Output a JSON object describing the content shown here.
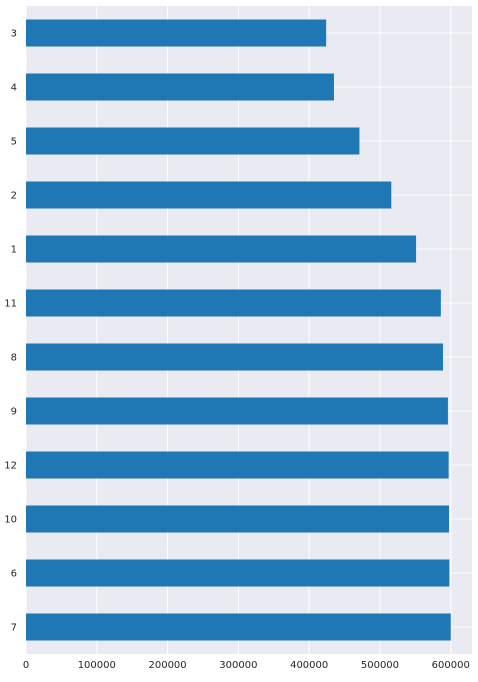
{
  "chart_data": {
    "type": "bar",
    "orientation": "horizontal",
    "categories": [
      "3",
      "4",
      "5",
      "2",
      "1",
      "11",
      "8",
      "9",
      "12",
      "10",
      "6",
      "7"
    ],
    "values": [
      424000,
      435000,
      471000,
      516000,
      551000,
      586000,
      589000,
      596000,
      597000,
      597500,
      598000,
      600000
    ],
    "xlim": [
      0,
      630000
    ],
    "xticks": [
      0,
      100000,
      200000,
      300000,
      400000,
      500000,
      600000
    ],
    "xtick_labels": [
      "0",
      "100000",
      "200000",
      "300000",
      "400000",
      "500000",
      "600000"
    ],
    "grid": true,
    "bar_color": "#1f77b4",
    "background_color": "#eaeaf2",
    "grid_color": "#ffffff"
  }
}
